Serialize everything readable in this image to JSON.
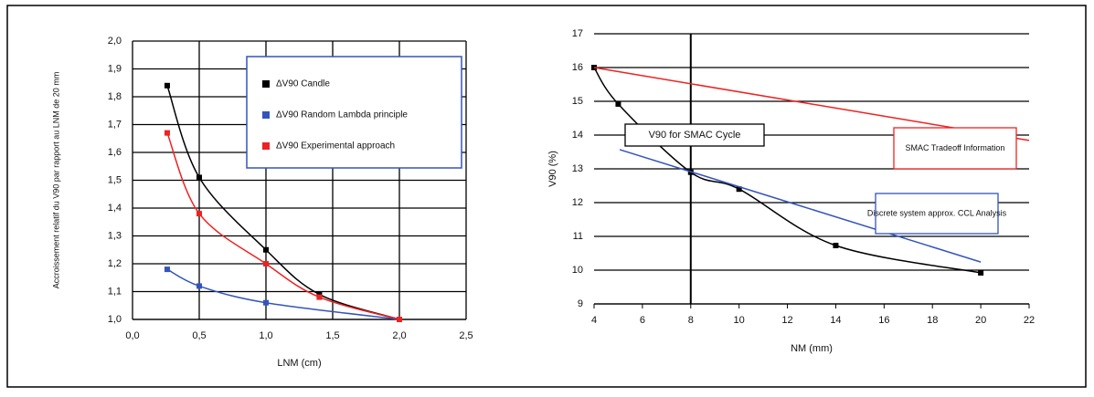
{
  "chart_data": [
    {
      "type": "line",
      "xlabel": "LNM (cm)",
      "ylabel": "Accroissement relatif du V90 par rapport au LNM de 20 mm",
      "xlim": [
        0,
        2.5
      ],
      "xticks": [
        {
          "value": 0,
          "label": "0,0"
        },
        {
          "value": 0.5,
          "label": "0,5"
        },
        {
          "value": 1,
          "label": "1,0"
        },
        {
          "value": 1.5,
          "label": "1,5"
        },
        {
          "value": 2,
          "label": "2,0"
        },
        {
          "value": 2.5,
          "label": "2,5"
        }
      ],
      "ylim": [
        1,
        2
      ],
      "yticks": [
        {
          "value": 1,
          "label": "1,0"
        },
        {
          "value": 1.1,
          "label": "1,1"
        },
        {
          "value": 1.2,
          "label": "1,2"
        },
        {
          "value": 1.3,
          "label": "1,3"
        },
        {
          "value": 1.4,
          "label": "1,4"
        },
        {
          "value": 1.5,
          "label": "1,5"
        },
        {
          "value": 1.6,
          "label": "1,6"
        },
        {
          "value": 1.7,
          "label": "1,7"
        },
        {
          "value": 1.8,
          "label": "1,8"
        },
        {
          "value": 1.9,
          "label": "1,9"
        },
        {
          "value": 2,
          "label": "2,0"
        }
      ],
      "grid": true,
      "series": [
        {
          "name": "ΔV90 Candle",
          "color": "#000000",
          "marker": "square",
          "x": [
            0.26,
            0.5,
            1.0,
            1.4,
            2.0
          ],
          "values": [
            1.84,
            1.51,
            1.25,
            1.09,
            1.0
          ]
        },
        {
          "name": "ΔV90 Random Lambda principle",
          "color": "#3355bb",
          "marker": "square",
          "x": [
            0.26,
            0.5,
            1.0,
            2.0
          ],
          "values": [
            1.18,
            1.12,
            1.06,
            1.0
          ]
        },
        {
          "name": "ΔV90 Experimental approach",
          "color": "#ee2222",
          "marker": "square",
          "x": [
            0.26,
            0.5,
            1.0,
            1.4,
            2.0
          ],
          "values": [
            1.67,
            1.38,
            1.2,
            1.08,
            1.0
          ]
        }
      ]
    },
    {
      "type": "line",
      "xlabel": "NM (mm)",
      "ylabel": "V90 (%)",
      "xlim": [
        4,
        22
      ],
      "xticks": [
        4,
        6,
        8,
        10,
        12,
        14,
        16,
        18,
        20,
        22
      ],
      "ylim": [
        9,
        17
      ],
      "yticks": [
        9,
        10,
        11,
        12,
        13,
        14,
        15,
        16,
        17
      ],
      "grid": true,
      "vline": 8,
      "series": [
        {
          "name": "V90 for SMAC Cycle",
          "color": "#000000",
          "marker": "square",
          "x": [
            4,
            5,
            8,
            10,
            14,
            20
          ],
          "values": [
            16,
            14.92,
            12.9,
            12.4,
            10.73,
            9.92
          ]
        },
        {
          "name": "SMAC Tradeoff Information",
          "color": "#ee2222",
          "x": [
            4,
            22
          ],
          "values": [
            16,
            13.84
          ]
        },
        {
          "name": "Discrete system approx. CCL Analysis",
          "color": "#3355bb",
          "x": [
            5.06,
            20
          ],
          "values": [
            13.57,
            10.24
          ]
        }
      ]
    }
  ]
}
